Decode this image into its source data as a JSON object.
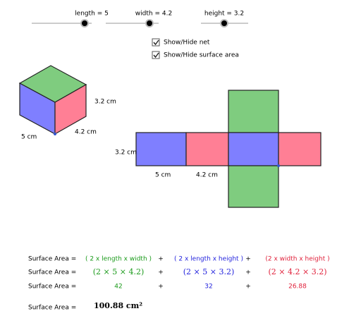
{
  "sliders": [
    {
      "label": "length = 5"
    },
    {
      "label": "width = 4.2"
    },
    {
      "label": "height = 3.2"
    }
  ],
  "checkboxes": [
    {
      "label": "Show/Hide net"
    },
    {
      "label": "Show/Hide surface area"
    }
  ],
  "cube": {
    "height_label": "3.2 cm",
    "width_label": "4.2 cm",
    "length_label": "5 cm"
  },
  "net": {
    "height_label": "3.2 cm",
    "length_label": "5 cm",
    "width_label": "4.2 cm"
  },
  "surface_area": {
    "rows": [
      [
        "Surface Area =",
        "( 2 x length x width )",
        "+",
        "( 2 x length x height )",
        "+",
        "(2 x width x height )"
      ],
      [
        "Surface Area =",
        "(2  ×  5  ×  4.2)",
        "+",
        "(2  ×  5  ×  3.2)",
        "+",
        "(2  ×  4.2  ×  3.2)"
      ],
      [
        "Surface Area =",
        "42",
        "+",
        "32",
        "+",
        "26.88"
      ]
    ],
    "total_label": "Surface Area =",
    "total": "100.88 cm²"
  }
}
